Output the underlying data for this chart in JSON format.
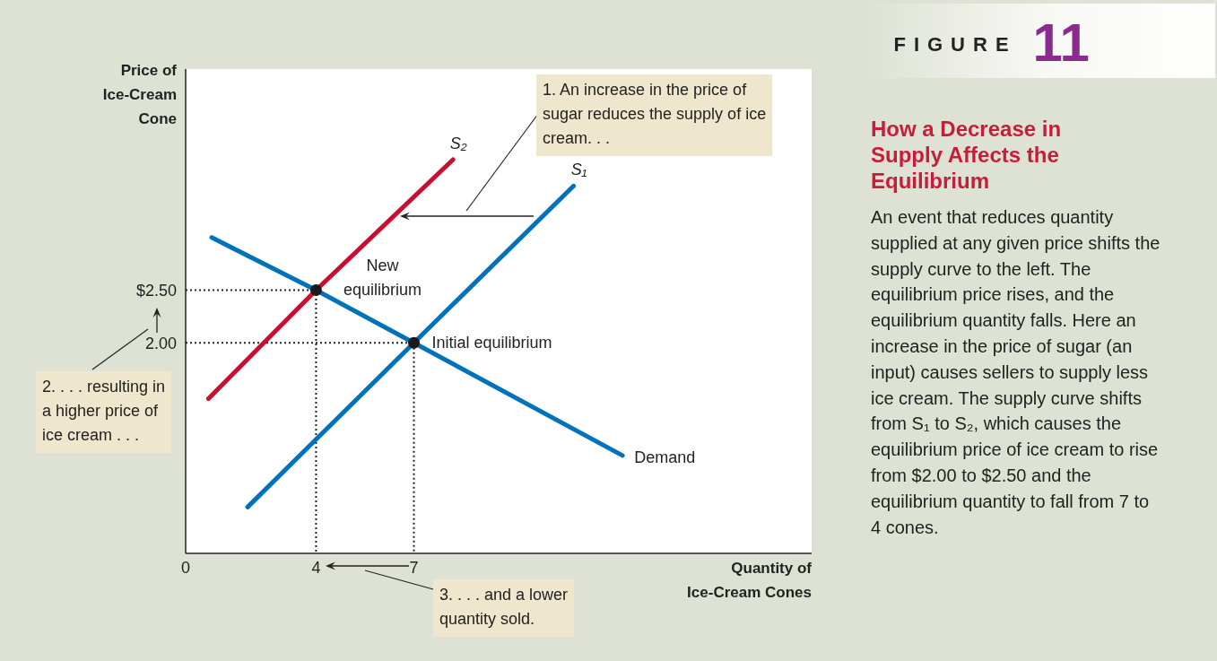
{
  "chart_data": {
    "type": "line",
    "title": "How a Decrease in Supply Affects the Equilibrium",
    "subtitle": "An event that reduces quantity supplied at any given price shifts the supply curve to the left. The equilibrium price rises, and the equilibrium quantity falls. Here an increase in the price of sugar (an input) causes sellers to supply less ice cream. The supply curve shifts from S₁ to S₂, which causes the equilibrium price of ice cream to rise from $2.00 to $2.50 and the equilibrium quantity to fall from 7 to 4 cones.",
    "xlabel": "Quantity of Ice-Cream Cones",
    "ylabel": "Price of Ice-Cream Cone",
    "xlim": [
      0,
      19.2
    ],
    "ylim": [
      0,
      4.6
    ],
    "xticks": [
      0,
      4,
      7
    ],
    "yticks": [
      {
        "value": 2,
        "label": "2.00"
      },
      {
        "value": 2.5,
        "label": "$2.50"
      }
    ],
    "grid": false,
    "series": [
      {
        "name": "S₂",
        "color": "#c8102e",
        "x": [
          0.7,
          4,
          8.2
        ],
        "values": [
          1.47,
          2.5,
          3.74
        ]
      },
      {
        "name": "S₁",
        "color": "#0072bc",
        "x": [
          1.9,
          7,
          11.9
        ],
        "values": [
          0.44,
          2.0,
          3.49
        ]
      },
      {
        "name": "Demand",
        "color": "#0072bc",
        "x": [
          0.8,
          4,
          7,
          13.4
        ],
        "values": [
          3.0,
          2.5,
          2.0,
          0.93
        ]
      },
      {
        "type": "line",
        "color": "#222222",
        "line_style": "dotted",
        "x": [
          0,
          4,
          4
        ],
        "values": [
          2.5,
          2.5,
          0
        ]
      },
      {
        "type": "line",
        "color": "#222222",
        "line_style": "dotted",
        "x": [
          0,
          7,
          7
        ],
        "values": [
          2.0,
          2.0,
          0
        ]
      },
      {
        "type": "scatter",
        "color": "#1a1a1a",
        "marker": "circle",
        "x": [
          4,
          7
        ],
        "values": [
          2.5,
          2.0
        ]
      }
    ],
    "annotations": [
      "FIGURE 11",
      "1. An increase in the price of sugar reduces the supply of ice cream. . .",
      "2. . . . resulting in a higher price of ice cream . . .",
      "3. . . . and a lower quantity sold.",
      {
        "text": "New equilibrium",
        "x": 4,
        "y": 2.5
      },
      {
        "text": "Initial equilibrium",
        "x": 7,
        "y": 2.0
      }
    ]
  }
}
